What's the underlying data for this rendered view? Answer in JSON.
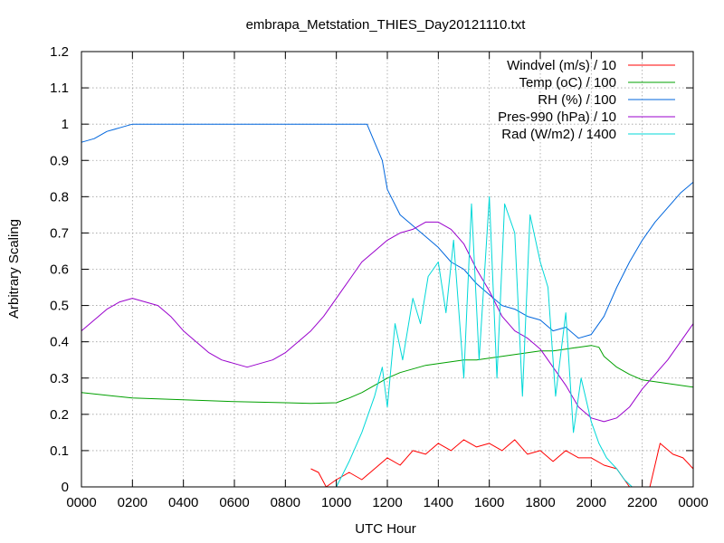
{
  "chart_data": {
    "type": "line",
    "title": "embrapa_Metstation_THIES_Day20121110.txt",
    "xlabel": "UTC Hour",
    "ylabel": "Arbitrary Scaling",
    "xlim": [
      0,
      24
    ],
    "ylim": [
      0,
      1.2
    ],
    "grid": true,
    "legend_position": "top-right",
    "x_tick_labels": [
      "0000",
      "0200",
      "0400",
      "0600",
      "0800",
      "1000",
      "1200",
      "1400",
      "1600",
      "1800",
      "2000",
      "2200",
      "0000"
    ],
    "y_tick_labels": [
      "0",
      "0.1",
      "0.2",
      "0.3",
      "0.4",
      "0.5",
      "0.6",
      "0.7",
      "0.8",
      "0.9",
      "1",
      "1.1",
      "1.2"
    ],
    "series": [
      {
        "name": "Windvel (m/s) / 10",
        "color": "#ff0000",
        "x": [
          9.0,
          9.3,
          9.6,
          10.0,
          10.5,
          11.0,
          11.5,
          12.0,
          12.5,
          13.0,
          13.5,
          14.0,
          14.5,
          15.0,
          15.5,
          16.0,
          16.5,
          17.0,
          17.5,
          18.0,
          18.5,
          19.0,
          19.5,
          20.0,
          20.5,
          21.0,
          21.5,
          22.0,
          22.3,
          22.7,
          23.2,
          23.6,
          24.0
        ],
        "y": [
          0.05,
          0.04,
          0.0,
          0.02,
          0.04,
          0.02,
          0.05,
          0.08,
          0.06,
          0.1,
          0.09,
          0.12,
          0.1,
          0.13,
          0.11,
          0.12,
          0.1,
          0.13,
          0.09,
          0.1,
          0.07,
          0.1,
          0.08,
          0.08,
          0.06,
          0.05,
          0.0,
          0.0,
          0.0,
          0.12,
          0.09,
          0.08,
          0.05
        ]
      },
      {
        "name": "Temp (oC) / 100",
        "color": "#00a000",
        "x": [
          0,
          2,
          4,
          6,
          8,
          9,
          10,
          10.5,
          11,
          11.5,
          12,
          12.5,
          13,
          13.5,
          14,
          14.5,
          15,
          15.5,
          16,
          16.5,
          17,
          17.5,
          18,
          18.5,
          19,
          19.5,
          20,
          20.3,
          20.5,
          21,
          21.5,
          22,
          23,
          24
        ],
        "y": [
          0.26,
          0.245,
          0.24,
          0.235,
          0.232,
          0.23,
          0.232,
          0.245,
          0.26,
          0.28,
          0.3,
          0.315,
          0.325,
          0.335,
          0.34,
          0.345,
          0.35,
          0.35,
          0.355,
          0.36,
          0.365,
          0.37,
          0.375,
          0.375,
          0.38,
          0.385,
          0.39,
          0.385,
          0.36,
          0.33,
          0.31,
          0.295,
          0.285,
          0.275
        ]
      },
      {
        "name": "RH (%) / 100",
        "color": "#0066dd",
        "x": [
          0,
          0.5,
          1,
          1.5,
          2,
          2.5,
          10,
          11.2,
          11.5,
          11.8,
          12,
          12.5,
          13,
          13.5,
          14,
          14.5,
          15,
          15.5,
          16,
          16.5,
          17,
          17.5,
          18,
          18.5,
          19,
          19.5,
          20,
          20.5,
          21,
          21.5,
          22,
          22.5,
          23,
          23.5,
          24
        ],
        "y": [
          0.95,
          0.96,
          0.98,
          0.99,
          1.0,
          1.0,
          1.0,
          1.0,
          0.95,
          0.9,
          0.82,
          0.75,
          0.72,
          0.69,
          0.66,
          0.62,
          0.6,
          0.56,
          0.53,
          0.5,
          0.49,
          0.47,
          0.46,
          0.43,
          0.44,
          0.41,
          0.42,
          0.47,
          0.55,
          0.62,
          0.68,
          0.73,
          0.77,
          0.81,
          0.84
        ]
      },
      {
        "name": "Pres-990 (hPa) / 10",
        "color": "#9900cc",
        "x": [
          0,
          0.5,
          1,
          1.5,
          2,
          2.5,
          3,
          3.5,
          4,
          4.5,
          5,
          5.5,
          6,
          6.5,
          7,
          7.5,
          8,
          8.5,
          9,
          9.5,
          10,
          10.5,
          11,
          11.5,
          12,
          12.5,
          13,
          13.5,
          14,
          14.5,
          15,
          15.5,
          16,
          16.5,
          17,
          17.5,
          18,
          18.5,
          19,
          19.5,
          20,
          20.5,
          21,
          21.5,
          22,
          22.5,
          23,
          23.5,
          24
        ],
        "y": [
          0.43,
          0.46,
          0.49,
          0.51,
          0.52,
          0.51,
          0.5,
          0.47,
          0.43,
          0.4,
          0.37,
          0.35,
          0.34,
          0.33,
          0.34,
          0.35,
          0.37,
          0.4,
          0.43,
          0.47,
          0.52,
          0.57,
          0.62,
          0.65,
          0.68,
          0.7,
          0.71,
          0.73,
          0.73,
          0.71,
          0.67,
          0.6,
          0.54,
          0.47,
          0.43,
          0.41,
          0.38,
          0.33,
          0.28,
          0.22,
          0.19,
          0.18,
          0.19,
          0.22,
          0.27,
          0.31,
          0.35,
          0.4,
          0.45
        ]
      },
      {
        "name": "Rad (W/m2) / 1400",
        "color": "#00d8d8",
        "x": [
          10.0,
          10.5,
          11.0,
          11.5,
          11.8,
          12.0,
          12.3,
          12.6,
          13.0,
          13.3,
          13.6,
          14.0,
          14.3,
          14.6,
          15.0,
          15.3,
          15.6,
          16.0,
          16.3,
          16.6,
          17.0,
          17.3,
          17.6,
          18.0,
          18.3,
          18.6,
          19.0,
          19.3,
          19.6,
          20.0,
          20.3,
          20.6,
          21.0,
          21.3,
          21.6,
          22.0
        ],
        "y": [
          0.0,
          0.07,
          0.15,
          0.25,
          0.33,
          0.22,
          0.45,
          0.35,
          0.52,
          0.45,
          0.58,
          0.62,
          0.48,
          0.68,
          0.3,
          0.78,
          0.35,
          0.8,
          0.3,
          0.78,
          0.7,
          0.25,
          0.75,
          0.62,
          0.55,
          0.25,
          0.48,
          0.15,
          0.3,
          0.18,
          0.12,
          0.08,
          0.05,
          0.02,
          0.0,
          0.0
        ]
      }
    ]
  }
}
